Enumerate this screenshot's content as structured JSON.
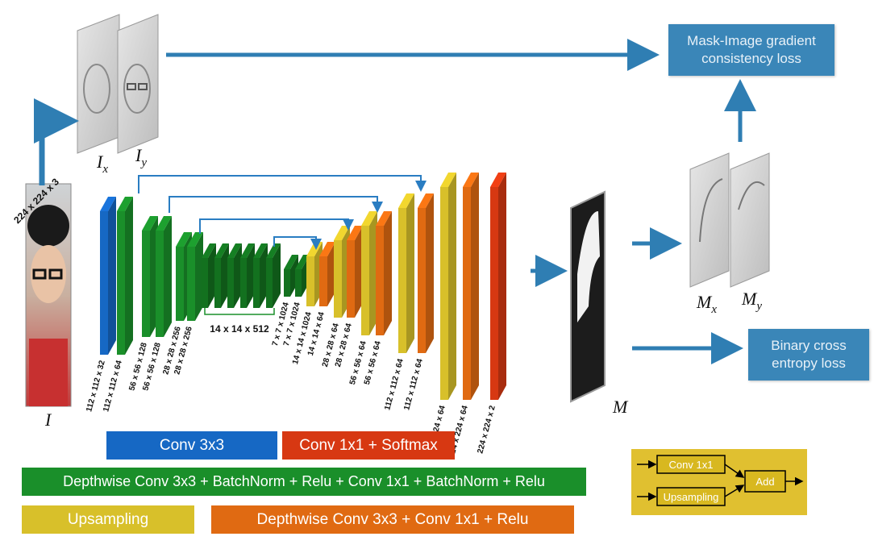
{
  "input": {
    "size_label": "224 x 224 x 3",
    "symbol": "I"
  },
  "gradients": {
    "ix_base": "I",
    "ix_sub": "x",
    "iy_base": "I",
    "iy_sub": "y"
  },
  "mask": {
    "symbol": "M",
    "mx_base": "M",
    "mx_sub": "x",
    "my_base": "M",
    "my_sub": "y"
  },
  "losses": {
    "gradient_loss": "Mask-Image gradient\nconsistency loss",
    "bce_loss": "Binary cross\nentropy loss"
  },
  "layer_labels": [
    "112 x 112 x 32",
    "112 x 112 x 64",
    "56 x 56 x 128",
    "56 x 56 x 128",
    "28 x 28 x 256",
    "28 x 28 x 256",
    "14 x 14 x 512",
    "7 x 7 x 1024",
    "7 x 7 x 1024",
    "14 x 14 x 1024",
    "14 x 14 x 64",
    "28 x 28 x 64",
    "28 x 28 x 64",
    "56 x 56 x 64",
    "56 x 56 x 64",
    "112 x 112 x 64",
    "112 x 112 x 64",
    "224 x 224 x 64",
    "224 x 224 x 64",
    "224 x 224 x 2"
  ],
  "legend": {
    "conv3x3": "Conv 3x3",
    "conv1x1_softmax": "Conv 1x1 + Softmax",
    "depthwise_bn": "Depthwise Conv 3x3 + BatchNorm + Relu + Conv 1x1 + BatchNorm + Relu",
    "upsampling": "Upsampling",
    "depthwise_relu": "Depthwise Conv 3x3 + Conv 1x1 + Relu"
  },
  "add_block": {
    "conv1x1": "Conv 1x1",
    "upsampling": "Upsampling",
    "add": "Add"
  },
  "colors": {
    "blue": "#1668c4",
    "green": "#1a8f2a",
    "dark_green": "#13711f",
    "yellow": "#d8c02a",
    "orange": "#e06a12",
    "red": "#d73812",
    "arrow": "#2f7eb3",
    "skip": "#2a7dc2",
    "loss_box": "#3a86b8",
    "add_panel": "#e0c030"
  }
}
